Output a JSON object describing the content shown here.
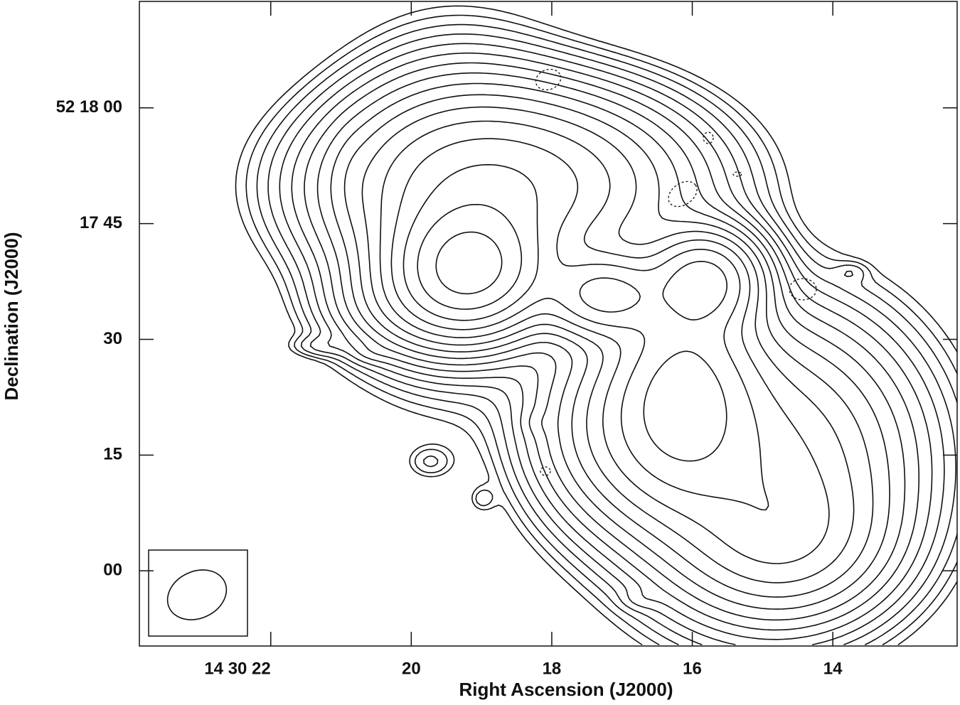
{
  "chart_data": {
    "type": "contour",
    "xlabel": "Right Ascension (J2000)",
    "ylabel": "Declination (J2000)",
    "xlim": [
      23.87,
      12.23
    ],
    "ylim": [
      -9.75,
      73.8
    ],
    "xticks": [
      {
        "value": 22,
        "label": "14 30 22"
      },
      20,
      18,
      16,
      14
    ],
    "yticks": [
      {
        "value": 60,
        "label": "52 18 00"
      },
      {
        "value": 45,
        "label": "17 45"
      },
      30,
      15,
      {
        "value": 0,
        "label": "00"
      }
    ],
    "color": "#000000"
  }
}
